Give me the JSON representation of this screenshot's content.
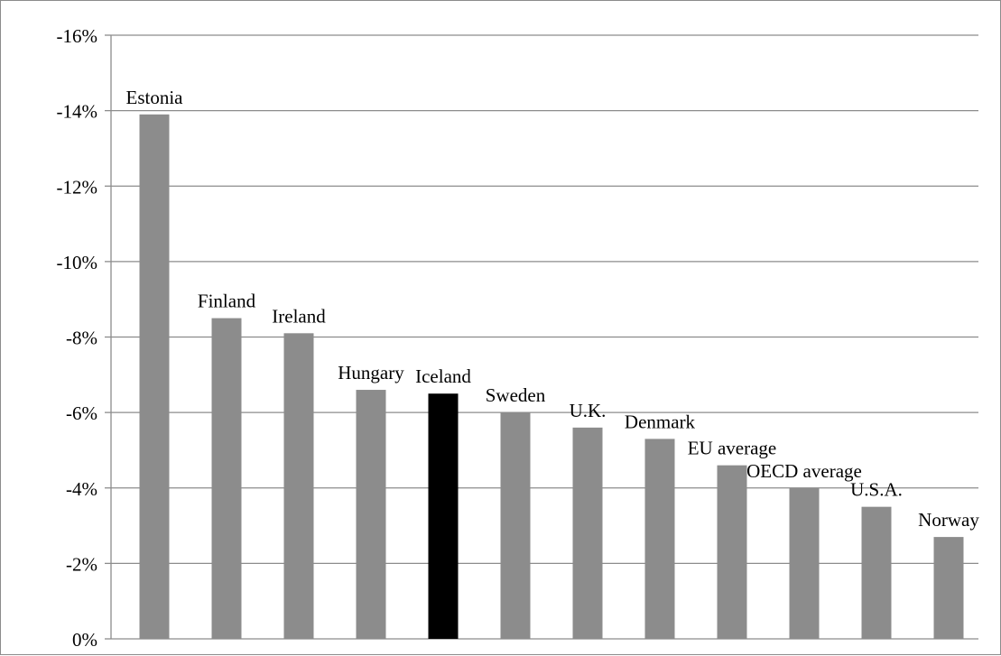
{
  "chart_data": {
    "type": "bar",
    "title": "",
    "xlabel": "",
    "ylabel": "",
    "ylim": [
      0,
      -16
    ],
    "y_axis_inverted": true,
    "yticks": [
      0,
      -2,
      -4,
      -6,
      -8,
      -10,
      -12,
      -14,
      -16
    ],
    "ytick_labels": [
      "0%",
      "-2%",
      "-4%",
      "-6%",
      "-8%",
      "-10%",
      "-12%",
      "-14%",
      "-16%"
    ],
    "grid": true,
    "legend": "none",
    "categories": [
      "Estonia",
      "Finland",
      "Ireland",
      "Hungary",
      "Iceland",
      "Sweden",
      "U.K.",
      "Denmark",
      "EU average",
      "OECD average",
      "U.S.A.",
      "Norway"
    ],
    "values": [
      -13.9,
      -8.5,
      -8.1,
      -6.6,
      -6.5,
      -6.0,
      -5.6,
      -5.3,
      -4.6,
      -4.0,
      -3.5,
      -2.7
    ],
    "bar_colors": [
      "#8c8c8c",
      "#8c8c8c",
      "#8c8c8c",
      "#8c8c8c",
      "#000000",
      "#8c8c8c",
      "#8c8c8c",
      "#8c8c8c",
      "#8c8c8c",
      "#8c8c8c",
      "#8c8c8c",
      "#8c8c8c"
    ],
    "colors": {
      "bar": "#8c8c8c",
      "highlight": "#000000",
      "grid": "#8c8c8c",
      "axis": "#8c8c8c"
    }
  }
}
